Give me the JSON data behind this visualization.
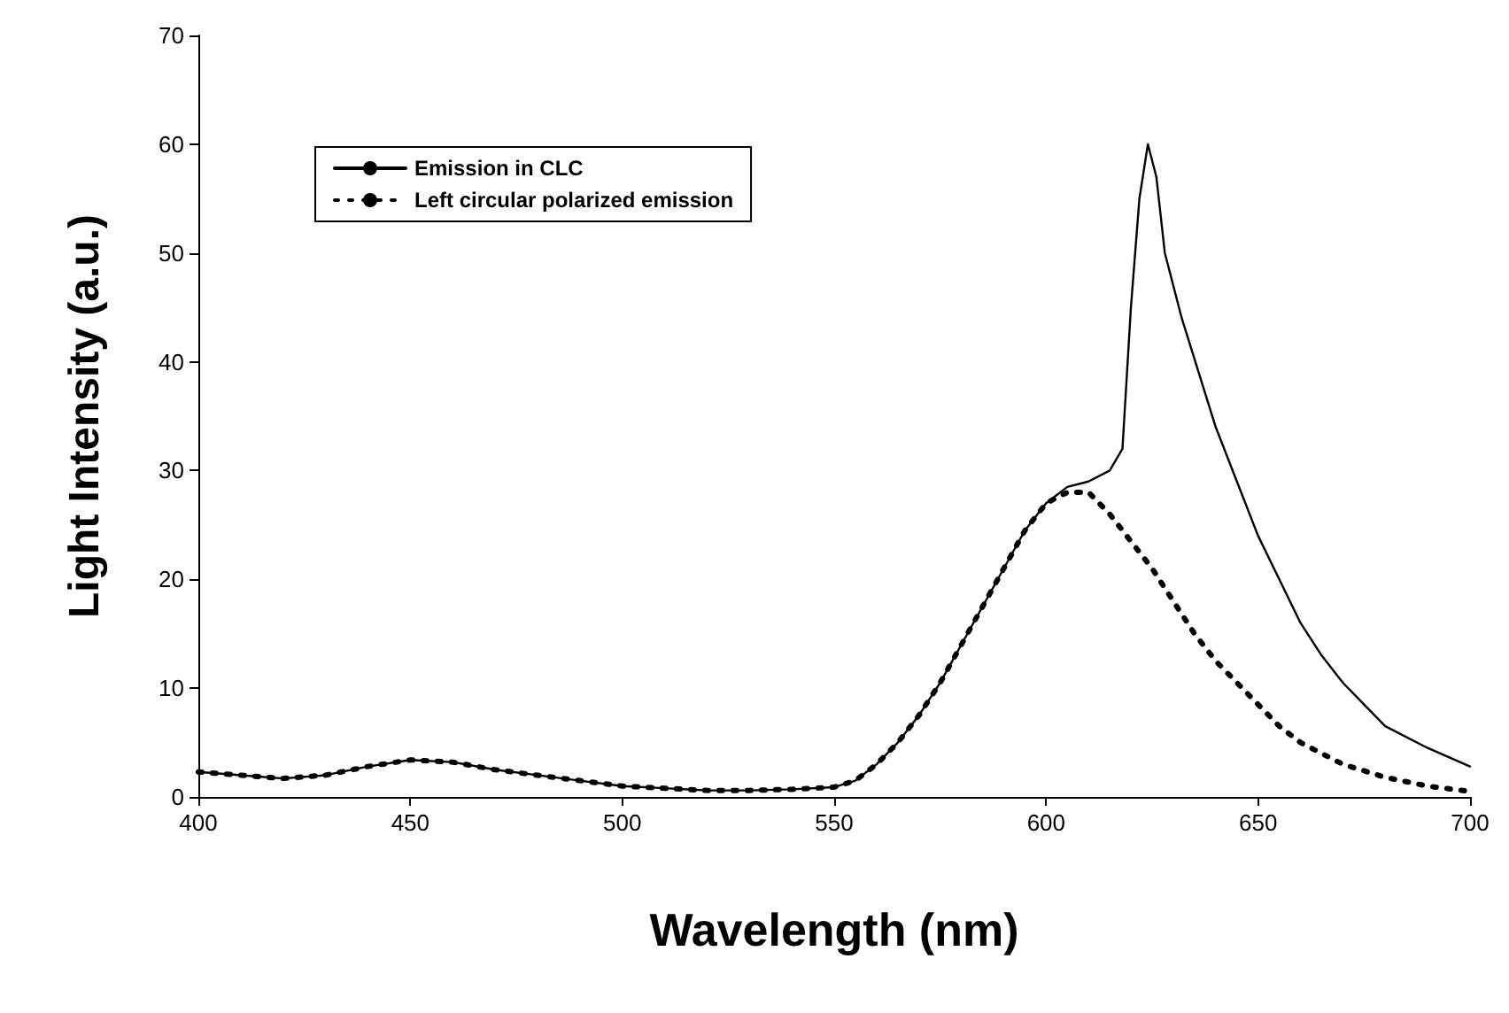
{
  "chart_data": {
    "type": "line",
    "xlabel": "Wavelength (nm)",
    "ylabel": "Light Intensity (a.u.)",
    "xlim": [
      400,
      700
    ],
    "xticks": [
      400,
      450,
      500,
      550,
      600,
      650,
      700
    ],
    "ylim": [
      0,
      70
    ],
    "yticks": [
      0,
      10,
      20,
      30,
      40,
      50,
      60,
      70
    ],
    "grid": false,
    "legend": "top left",
    "marker": "none",
    "series": [
      {
        "name": "Emission in CLC",
        "color": "#000000",
        "line_style": "solid",
        "x": [
          400,
          410,
          420,
          430,
          440,
          450,
          460,
          470,
          480,
          490,
          500,
          510,
          520,
          530,
          540,
          550,
          555,
          560,
          565,
          570,
          575,
          580,
          585,
          590,
          595,
          600,
          605,
          610,
          615,
          618,
          620,
          622,
          624,
          626,
          628,
          632,
          636,
          640,
          645,
          650,
          655,
          660,
          665,
          670,
          675,
          680,
          690,
          700
        ],
        "values": [
          2.3,
          2,
          1.7,
          2,
          2.8,
          3.4,
          3.2,
          2.5,
          2,
          1.5,
          1,
          0.8,
          0.6,
          0.6,
          0.7,
          0.9,
          1.5,
          3,
          5,
          7.5,
          10.5,
          14,
          17.5,
          21,
          24.5,
          27,
          28.5,
          29,
          30,
          32,
          45,
          55,
          60,
          57,
          50,
          44,
          39,
          34,
          29,
          24,
          20,
          16,
          13,
          10.5,
          8.5,
          6.5,
          4.5,
          2.8
        ]
      },
      {
        "name": "Left circular polarized emission",
        "color": "#000000",
        "line_style": "dotted",
        "x": [
          400,
          410,
          420,
          430,
          440,
          450,
          460,
          470,
          480,
          490,
          500,
          510,
          520,
          530,
          540,
          550,
          555,
          560,
          565,
          570,
          575,
          580,
          585,
          590,
          595,
          600,
          605,
          610,
          615,
          620,
          625,
          630,
          635,
          640,
          645,
          650,
          655,
          660,
          670,
          680,
          690,
          700
        ],
        "values": [
          2.3,
          2,
          1.7,
          2,
          2.8,
          3.4,
          3.2,
          2.5,
          2,
          1.5,
          1,
          0.8,
          0.6,
          0.6,
          0.7,
          0.9,
          1.5,
          3,
          5,
          7.5,
          10.5,
          14,
          17.5,
          21,
          24.5,
          27,
          28,
          28,
          26,
          23.5,
          21,
          18,
          15,
          12.5,
          10.5,
          8.5,
          6.5,
          5,
          3,
          1.8,
          1,
          0.5
        ]
      }
    ]
  }
}
